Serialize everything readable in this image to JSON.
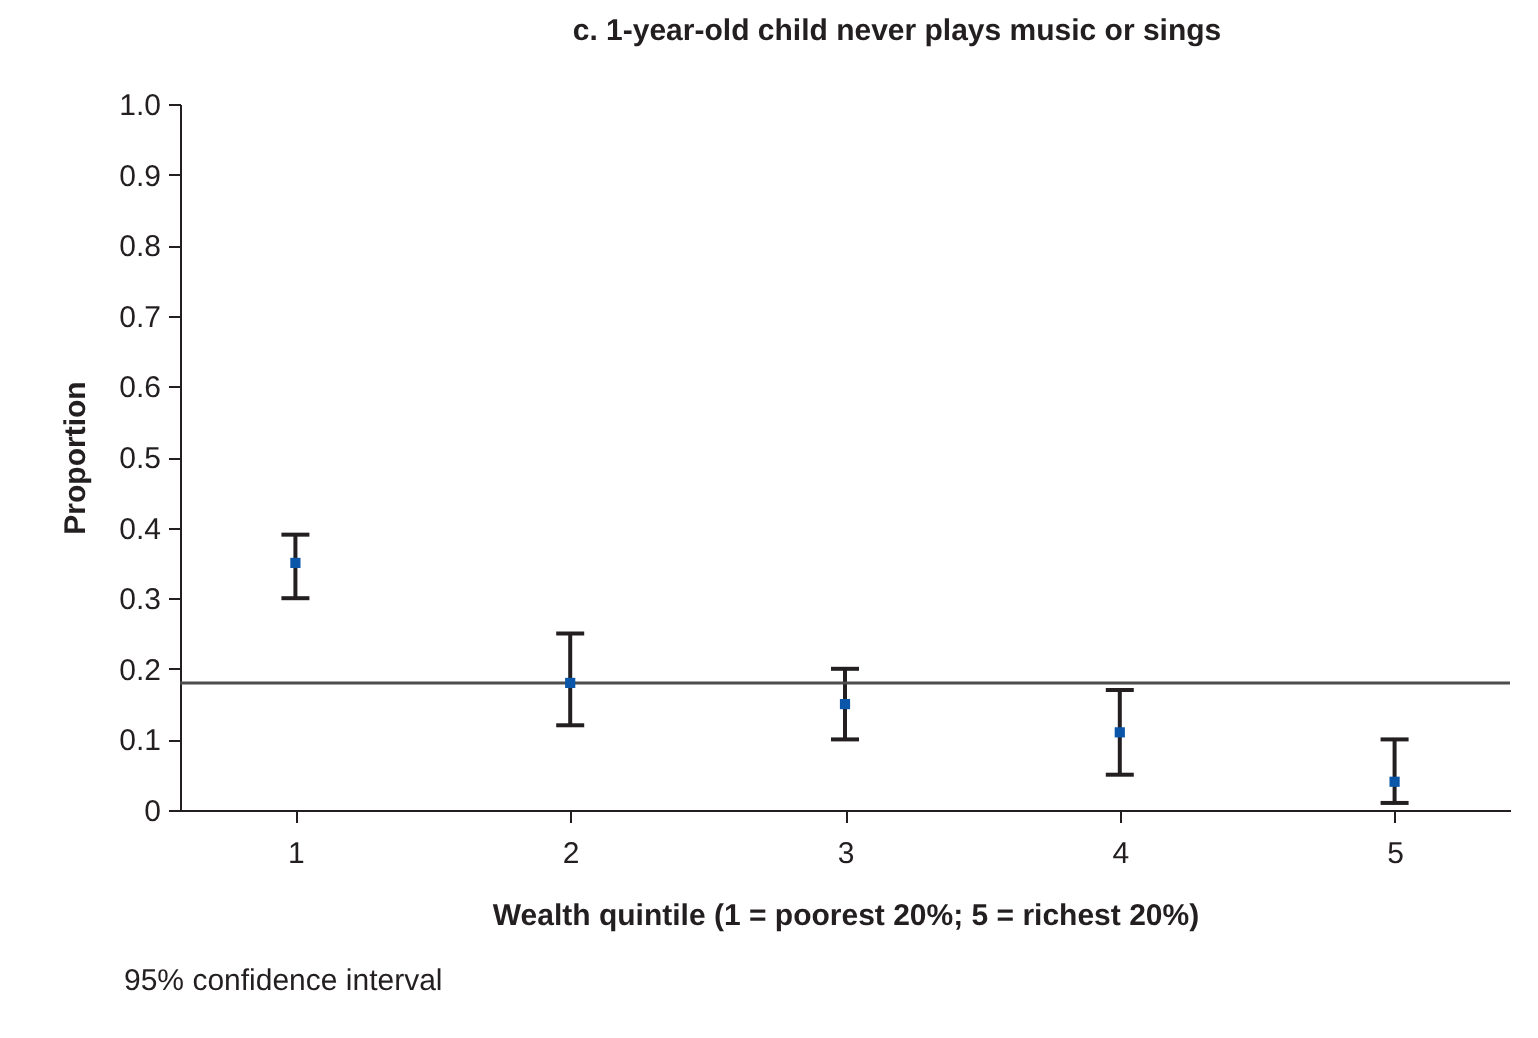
{
  "chart_data": {
    "type": "scatter",
    "title": "c. 1-year-old child never plays music or sings",
    "xlabel": "Wealth quintile (1 = poorest 20%; 5 = richest 20%)",
    "ylabel": "Proportion",
    "categories": [
      "1",
      "2",
      "3",
      "4",
      "5"
    ],
    "values": [
      0.35,
      0.18,
      0.15,
      0.11,
      0.04
    ],
    "errors": [
      [
        0.3,
        0.39
      ],
      [
        0.12,
        0.25
      ],
      [
        0.1,
        0.2
      ],
      [
        0.05,
        0.17
      ],
      [
        0.01,
        0.1
      ]
    ],
    "color": "#0b56a8",
    "marker": "square",
    "ylim": [
      0,
      1
    ],
    "yticks": [
      0,
      0.1,
      0.2,
      0.3,
      0.4,
      0.5,
      0.6,
      0.7,
      0.8,
      0.9,
      {
        "value": 1.0,
        "label": "1.0"
      }
    ],
    "ref_lines": [
      {
        "axis": "y",
        "value": 0.18,
        "color": "#4d4d4d"
      }
    ],
    "annotations": [
      "95% confidence interval"
    ]
  }
}
